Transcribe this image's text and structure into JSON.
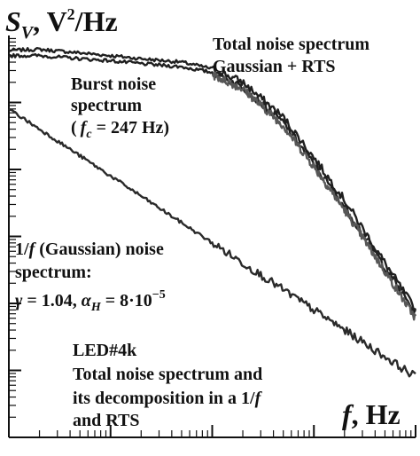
{
  "chart_data": {
    "type": "line",
    "ylabel": {
      "symbol": "S",
      "subscript": "V",
      "rest": ", V",
      "sup": "2",
      "unit": "/Hz"
    },
    "xlabel": {
      "symbol": "f",
      "rest": ", Hz"
    },
    "annotations": {
      "total": {
        "line1": "Total noise spectrum",
        "line2": "Gaussian + RTS"
      },
      "burst": {
        "line1": "Burst noise",
        "line2": "spectrum",
        "line3_open": "(",
        "line3_sym": "f",
        "line3_sub": "c",
        "line3_rest": " = 247 Hz)"
      },
      "gauss": {
        "line1_pre": "1/",
        "line1_sym": "f",
        "line1_rest": " (Gaussian) noise",
        "line2": "spectrum:",
        "gamma_sym": "γ",
        "gamma_val": " = 1.04, ",
        "alpha_sym": "α",
        "alpha_sub": "H",
        "alpha_val": " = 8·10",
        "alpha_exp": "−5"
      },
      "led": {
        "line1": "LED#4k",
        "line2": "Total noise spectrum and",
        "line3_pre": "its decomposition in a 1/",
        "line3_sym": "f",
        "line4": "and RTS"
      }
    },
    "x_scale": "log",
    "y_scale": "log",
    "xlim": [
      1,
      10000
    ],
    "ylim": [
      1e-06,
      1
    ],
    "grid": false,
    "params": {
      "fc_hz": 247,
      "gamma": 1.04,
      "alpha_h": 8e-05
    },
    "series": [
      {
        "role": "total-upper",
        "color": "#1f1f1f",
        "x": [
          1,
          2,
          5,
          10,
          20,
          50,
          100,
          200,
          500,
          1000,
          2000,
          5000,
          10000
        ],
        "y": [
          0.6,
          0.62,
          0.55,
          0.5,
          0.45,
          0.4,
          0.32,
          0.2,
          0.06,
          0.015,
          0.0035,
          0.0004,
          8e-05
        ]
      },
      {
        "role": "total-lower",
        "color": "#1f1f1f",
        "x": [
          1,
          2,
          5,
          10,
          20,
          50,
          100,
          200,
          500,
          1000,
          2000,
          5000,
          10000
        ],
        "y": [
          0.5,
          0.5,
          0.45,
          0.42,
          0.38,
          0.34,
          0.28,
          0.17,
          0.05,
          0.012,
          0.0028,
          0.00035,
          7e-05
        ]
      },
      {
        "role": "burst-rts",
        "color": "#575757",
        "x": [
          100,
          200,
          500,
          1000,
          2000,
          5000,
          10000
        ],
        "y": [
          0.26,
          0.16,
          0.045,
          0.011,
          0.0025,
          0.0003,
          6e-05
        ]
      },
      {
        "role": "gaussian-1/f",
        "color": "#2a2a2a",
        "x": [
          1,
          2,
          5,
          10,
          20,
          50,
          100,
          200,
          500,
          1000,
          2000,
          5000,
          10000
        ],
        "y": [
          0.08,
          0.04,
          0.016,
          0.008,
          0.004,
          0.0016,
          0.0008,
          0.0004,
          0.00016,
          8e-05,
          4e-05,
          1.6e-05,
          8e-06
        ]
      }
    ]
  }
}
